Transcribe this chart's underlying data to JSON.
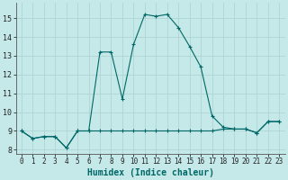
{
  "xlabel": "Humidex (Indice chaleur)",
  "bg_color": "#c5e8e8",
  "line_color": "#006868",
  "grid_color": "#afd4d4",
  "x_values": [
    0,
    1,
    2,
    3,
    4,
    5,
    6,
    7,
    8,
    9,
    10,
    11,
    12,
    13,
    14,
    15,
    16,
    17,
    18,
    19,
    20,
    21,
    22,
    23
  ],
  "y1_values": [
    9.0,
    8.6,
    8.7,
    8.7,
    8.1,
    9.0,
    9.0,
    13.2,
    13.2,
    10.7,
    13.6,
    15.2,
    15.1,
    15.2,
    14.5,
    13.5,
    12.4,
    9.8,
    9.2,
    9.1,
    9.1,
    8.9,
    9.5,
    9.5
  ],
  "y2_values": [
    9.0,
    8.6,
    8.7,
    8.7,
    8.1,
    9.0,
    9.0,
    9.0,
    9.0,
    9.0,
    9.0,
    9.0,
    9.0,
    9.0,
    9.0,
    9.0,
    9.0,
    9.0,
    9.1,
    9.1,
    9.1,
    8.9,
    9.5,
    9.5
  ],
  "xlim": [
    -0.5,
    23.5
  ],
  "ylim": [
    7.8,
    15.8
  ],
  "yticks": [
    8,
    9,
    10,
    11,
    12,
    13,
    14,
    15
  ],
  "xticks": [
    0,
    1,
    2,
    3,
    4,
    5,
    6,
    7,
    8,
    9,
    10,
    11,
    12,
    13,
    14,
    15,
    16,
    17,
    18,
    19,
    20,
    21,
    22,
    23
  ],
  "tick_fontsize": 5.5,
  "xlabel_fontsize": 7
}
